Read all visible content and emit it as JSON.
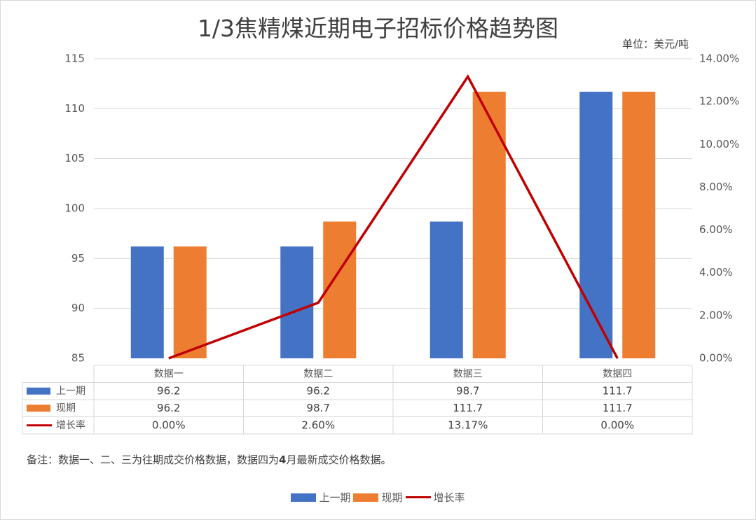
{
  "chart_data": {
    "type": "bar",
    "title": "1/3焦精煤近期电子招标价格趋势图",
    "unit_label": "单位：美元/吨",
    "categories": [
      "数据一",
      "数据二",
      "数据三",
      "数据四"
    ],
    "series": [
      {
        "name": "上一期",
        "type": "bar",
        "axis": "left",
        "color": "#4472C4",
        "values": [
          96.2,
          96.2,
          98.7,
          111.7
        ],
        "labels": [
          "96.2",
          "96.2",
          "98.7",
          "111.7"
        ]
      },
      {
        "name": "现期",
        "type": "bar",
        "axis": "left",
        "color": "#ED7D31",
        "values": [
          96.2,
          98.7,
          111.7,
          111.7
        ],
        "labels": [
          "96.2",
          "98.7",
          "111.7",
          "111.7"
        ]
      },
      {
        "name": "增长率",
        "type": "line",
        "axis": "right",
        "color": "#C00000",
        "values": [
          0.0,
          2.6,
          13.17,
          0.0
        ],
        "labels": [
          "0.00%",
          "2.60%",
          "13.17%",
          "0.00%"
        ]
      }
    ],
    "y_left": {
      "min": 85,
      "max": 115,
      "ticks": [
        "85",
        "90",
        "95",
        "100",
        "105",
        "110",
        "115"
      ]
    },
    "y_right": {
      "min": 0,
      "max": 14,
      "ticks": [
        "0.00%",
        "2.00%",
        "4.00%",
        "6.00%",
        "8.00%",
        "10.00%",
        "12.00%",
        "14.00%"
      ]
    },
    "grid": true,
    "data_table": true,
    "legend_position": "bottom"
  },
  "note": {
    "prefix": "备注：数据一、二、三为往期成交价格数据，数据四为",
    "bold": "4",
    "suffix": "月最新成交价格数据。"
  }
}
